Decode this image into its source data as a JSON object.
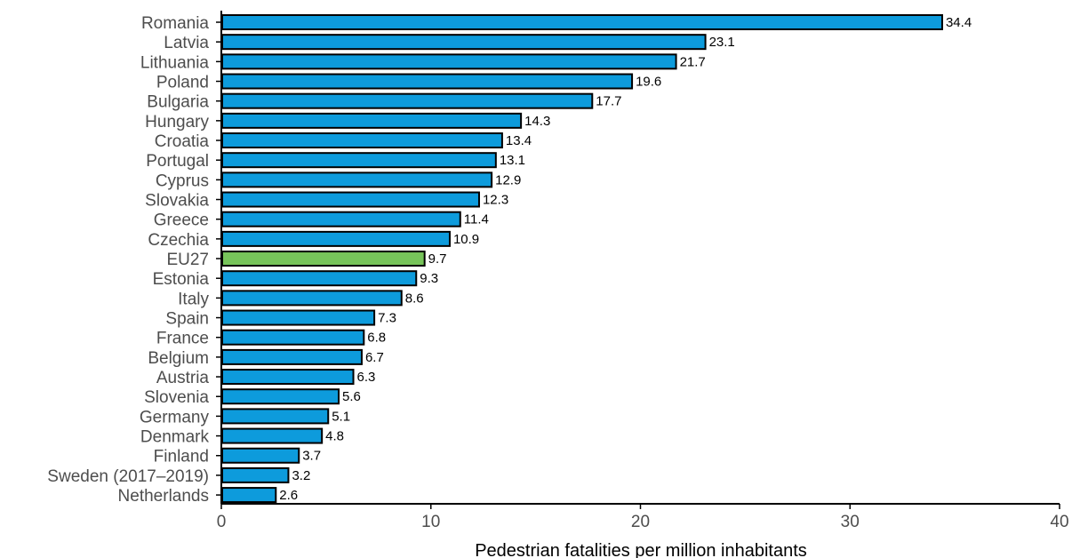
{
  "chart_data": {
    "type": "bar",
    "orientation": "horizontal",
    "title": "",
    "xlabel": "Pedestrian fatalities per million inhabitants",
    "ylabel": "",
    "xlim": [
      0,
      40
    ],
    "xticks": [
      0,
      10,
      20,
      30,
      40
    ],
    "grid": false,
    "categories": [
      "Romania",
      "Latvia",
      "Lithuania",
      "Poland",
      "Bulgaria",
      "Hungary",
      "Croatia",
      "Portugal",
      "Cyprus",
      "Slovakia",
      "Greece",
      "Czechia",
      "EU27",
      "Estonia",
      "Italy",
      "Spain",
      "France",
      "Belgium",
      "Austria",
      "Slovenia",
      "Germany",
      "Denmark",
      "Finland",
      "Sweden (2017–2019)",
      "Netherlands"
    ],
    "values": [
      34.4,
      23.1,
      21.7,
      19.6,
      17.7,
      14.3,
      13.4,
      13.1,
      12.9,
      12.3,
      11.4,
      10.9,
      9.7,
      9.3,
      8.6,
      7.3,
      6.8,
      6.7,
      6.3,
      5.6,
      5.1,
      4.8,
      3.7,
      3.2,
      2.6
    ],
    "value_labels": [
      "34.4",
      "23.1",
      "21.7",
      "19.6",
      "17.7",
      "14.3",
      "13.4",
      "13.1",
      "12.9",
      "12.3",
      "11.4",
      "10.9",
      "9.7",
      "9.3",
      "8.6",
      "7.3",
      "6.8",
      "6.7",
      "6.3",
      "5.6",
      "5.1",
      "4.8",
      "3.7",
      "3.2",
      "2.6"
    ],
    "highlight_category": "EU27",
    "colors": {
      "bar": "#0d9bdc",
      "highlight": "#77c45a",
      "outline": "#000000"
    }
  }
}
